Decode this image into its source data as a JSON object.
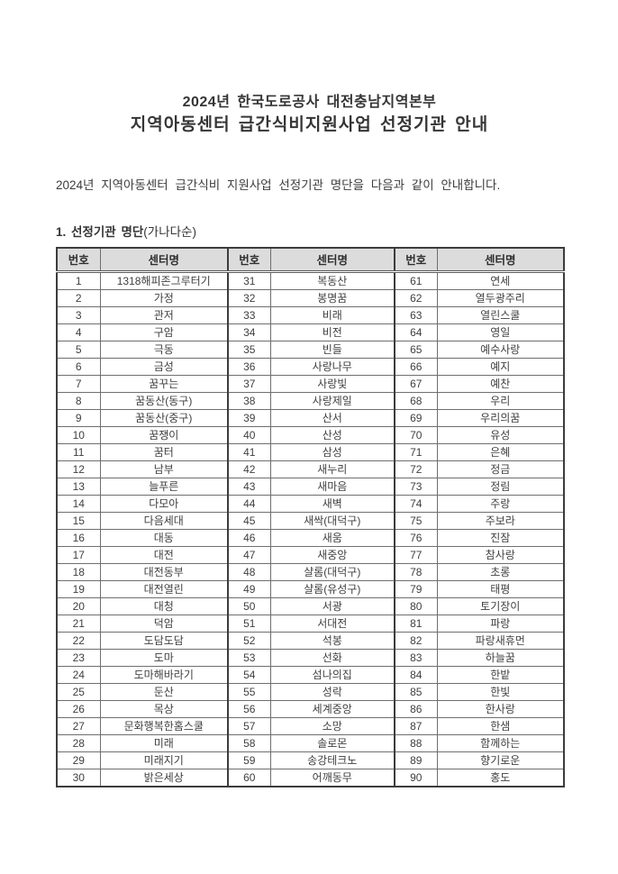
{
  "document": {
    "title_line1": "2024년 한국도로공사 대전충남지역본부",
    "title_line2": "지역아동센터 급간식비지원사업 선정기관 안내",
    "intro": "2024년 지역아동센터 급간식비 지원사업 선정기관 명단을 다음과 같이 안내합니다.",
    "section_heading_bold": "1. 선정기관 명단",
    "section_heading_normal": "(가나다순)"
  },
  "table": {
    "headers": [
      "번호",
      "센터명",
      "번호",
      "센터명",
      "번호",
      "센터명"
    ],
    "rows": [
      [
        "1",
        "1318해피존그루터기",
        "31",
        "복동산",
        "61",
        "연세"
      ],
      [
        "2",
        "가정",
        "32",
        "봉명꿈",
        "62",
        "열두광주리"
      ],
      [
        "3",
        "관저",
        "33",
        "비래",
        "63",
        "열린스쿨"
      ],
      [
        "4",
        "구암",
        "34",
        "비전",
        "64",
        "영일"
      ],
      [
        "5",
        "극동",
        "35",
        "빈들",
        "65",
        "예수사랑"
      ],
      [
        "6",
        "금성",
        "36",
        "사랑나무",
        "66",
        "예지"
      ],
      [
        "7",
        "꿈꾸는",
        "37",
        "사랑빛",
        "67",
        "예찬"
      ],
      [
        "8",
        "꿈동산(동구)",
        "38",
        "사랑제일",
        "68",
        "우리"
      ],
      [
        "9",
        "꿈동산(중구)",
        "39",
        "산서",
        "69",
        "우리의꿈"
      ],
      [
        "10",
        "꿈쟁이",
        "40",
        "산성",
        "70",
        "유성"
      ],
      [
        "11",
        "꿈터",
        "41",
        "삼성",
        "71",
        "은혜"
      ],
      [
        "12",
        "남부",
        "42",
        "새누리",
        "72",
        "정금"
      ],
      [
        "13",
        "늘푸른",
        "43",
        "새마음",
        "73",
        "정림"
      ],
      [
        "14",
        "다모아",
        "44",
        "새벽",
        "74",
        "주랑"
      ],
      [
        "15",
        "다음세대",
        "45",
        "새싹(대덕구)",
        "75",
        "주보라"
      ],
      [
        "16",
        "대동",
        "46",
        "새움",
        "76",
        "진잠"
      ],
      [
        "17",
        "대전",
        "47",
        "새중앙",
        "77",
        "참사랑"
      ],
      [
        "18",
        "대전동부",
        "48",
        "샬롬(대덕구)",
        "78",
        "초롱"
      ],
      [
        "19",
        "대전열린",
        "49",
        "샬롬(유성구)",
        "79",
        "태평"
      ],
      [
        "20",
        "대청",
        "50",
        "서광",
        "80",
        "토기장이"
      ],
      [
        "21",
        "덕암",
        "51",
        "서대전",
        "81",
        "파랑"
      ],
      [
        "22",
        "도담도담",
        "52",
        "석봉",
        "82",
        "파랑새휴먼"
      ],
      [
        "23",
        "도마",
        "53",
        "선화",
        "83",
        "하늘꿈"
      ],
      [
        "24",
        "도마해바라기",
        "54",
        "섬나의집",
        "84",
        "한밭"
      ],
      [
        "25",
        "둔산",
        "55",
        "성락",
        "85",
        "한빛"
      ],
      [
        "26",
        "목상",
        "56",
        "세계중앙",
        "86",
        "한사랑"
      ],
      [
        "27",
        "문화행복한홈스쿨",
        "57",
        "소망",
        "87",
        "한샘"
      ],
      [
        "28",
        "미래",
        "58",
        "솔로몬",
        "88",
        "함께하는"
      ],
      [
        "29",
        "미래지기",
        "59",
        "송강테크노",
        "89",
        "향기로운"
      ],
      [
        "30",
        "밝은세상",
        "60",
        "어깨동무",
        "90",
        "홍도"
      ]
    ]
  },
  "colors": {
    "header_background": "#dcdcdc",
    "outer_border": "#3c3c3c",
    "inner_border": "#6f6f6f",
    "text": "#3d3d3d"
  }
}
